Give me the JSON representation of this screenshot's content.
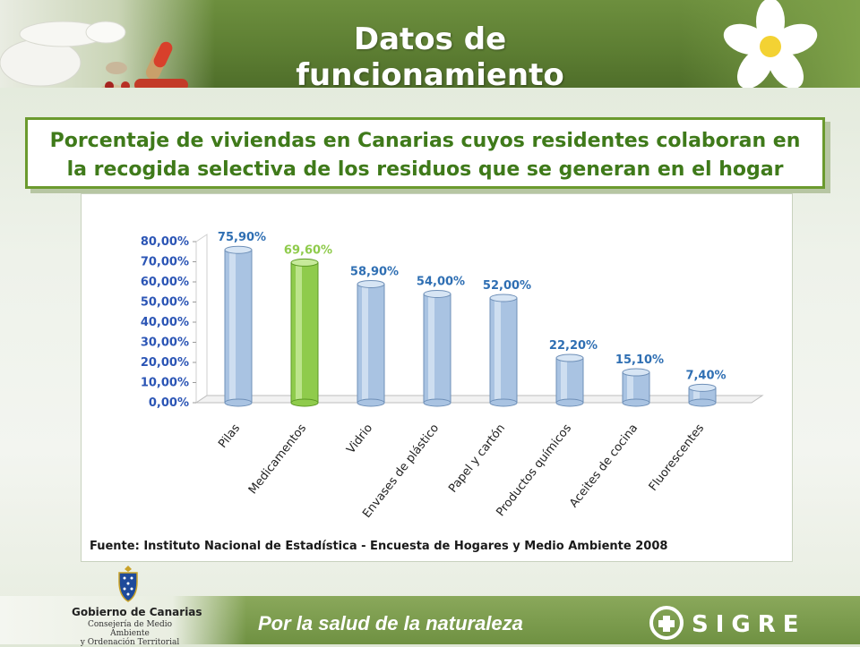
{
  "header": {
    "title": "Datos de funcionamiento"
  },
  "subtitle_lines": [
    "Porcentaje de viviendas en Canarias cuyos residentes colaboran en",
    "la recogida selectiva de los residuos que se generan en el hogar"
  ],
  "source": "Fuente: Instituto Nacional de Estadística - Encuesta  de Hogares y Medio Ambiente 2008",
  "footer": {
    "tagline": "Por  la salud de la naturaleza",
    "gov_name": "Gobierno de Canarias",
    "gov_dept_line1": "Consejería de Medio Ambiente",
    "gov_dept_line2": "y Ordenación Territorial",
    "brand": "SIGRE"
  },
  "colors": {
    "banner_green": "#5c7d32",
    "subtitle_green": "#3f7a1a",
    "bar_blue": "#a9c3e2",
    "bar_green": "#8fcb4c",
    "label_blue": "#2f6fb3",
    "label_green": "#8fcb4c",
    "tick_blue": "#2b55b5"
  },
  "chart_data": {
    "type": "bar",
    "categories": [
      "Pilas",
      "Medicamentos",
      "Vidrio",
      "Envases de plástico",
      "Papel y cartón",
      "Productos químicos",
      "Aceites de cocina",
      "Fluorescentes"
    ],
    "values": [
      75.9,
      69.6,
      58.9,
      54.0,
      52.0,
      22.2,
      15.1,
      7.4
    ],
    "data_labels": [
      "75,90%",
      "69,60%",
      "58,90%",
      "54,00%",
      "52,00%",
      "22,20%",
      "15,10%",
      "7,40%"
    ],
    "highlight_index": 1,
    "y_ticks": [
      "0,00%",
      "10,00%",
      "20,00%",
      "30,00%",
      "40,00%",
      "50,00%",
      "60,00%",
      "70,00%",
      "80,00%"
    ],
    "ylim": [
      0,
      80
    ],
    "grid": false,
    "legend": "none"
  }
}
